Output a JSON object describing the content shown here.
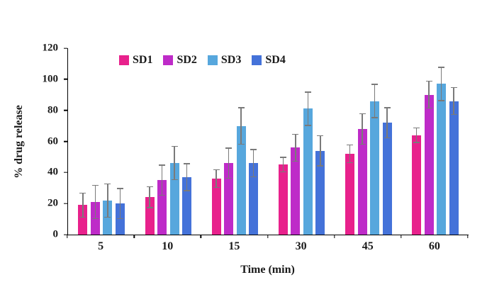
{
  "chart_data": {
    "type": "bar",
    "title": "",
    "xlabel": "Time (min)",
    "ylabel": "% drug release",
    "categories": [
      "5",
      "10",
      "15",
      "30",
      "45",
      "60"
    ],
    "y_ticks": [
      0,
      20,
      40,
      60,
      80,
      100,
      120
    ],
    "ylim": [
      0,
      120
    ],
    "grid": false,
    "legend_position": "top-inside",
    "error_bar_color": "#7a7a7a",
    "axis_color": "#000000",
    "series": [
      {
        "name": "SD1",
        "color": "#E8218C",
        "values": [
          19,
          24,
          36,
          45,
          52,
          64
        ],
        "errors": [
          8,
          7,
          6,
          5,
          6,
          5
        ]
      },
      {
        "name": "SD2",
        "color": "#BE2BC8",
        "values": [
          21,
          35,
          46,
          56,
          68,
          90
        ],
        "errors": [
          11,
          10,
          10,
          9,
          10,
          9
        ]
      },
      {
        "name": "SD3",
        "color": "#57A7DD",
        "values": [
          22,
          46,
          70,
          81,
          86,
          97
        ],
        "errors": [
          11,
          11,
          12,
          11,
          11,
          11
        ]
      },
      {
        "name": "SD4",
        "color": "#4472D9",
        "values": [
          20,
          37,
          46,
          54,
          72,
          86
        ],
        "errors": [
          10,
          9,
          9,
          10,
          10,
          9
        ]
      }
    ]
  }
}
